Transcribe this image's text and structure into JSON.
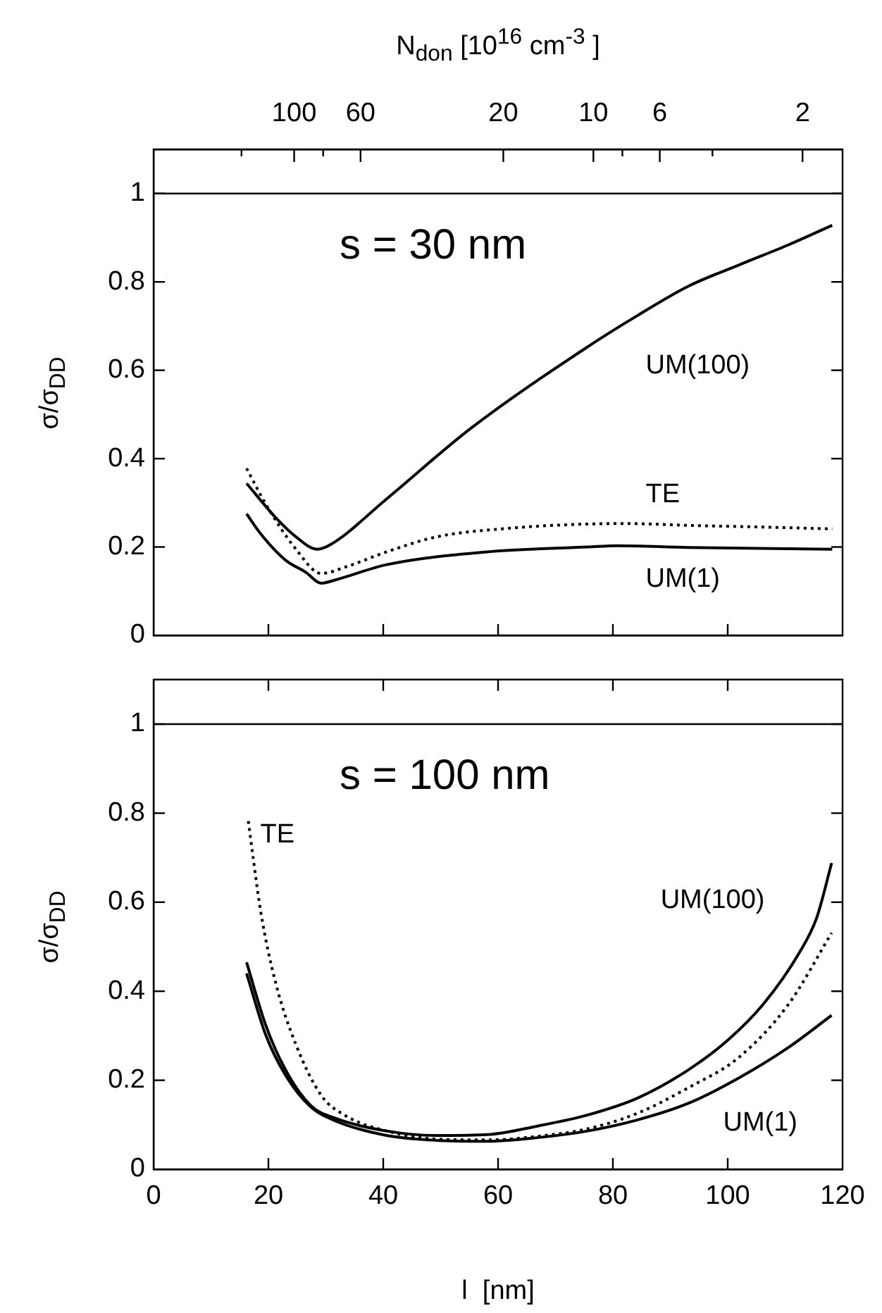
{
  "chart_data": [
    {
      "type": "line",
      "x2label": "N$_{don}$  [10$^{16}$ cm$^{-3}$ ]",
      "ylabel": "σ/σ$_{DD}$",
      "annotations": [
        "s = 30 nm"
      ],
      "xlim": [
        0,
        120
      ],
      "xticks": [
        0,
        20,
        40,
        60,
        80,
        100,
        120
      ],
      "log": "x2",
      "x2lim": [
        295,
        1.47
      ],
      "x2ticks": [
        {
          "value": 150,
          "label": null
        },
        100,
        {
          "value": 80,
          "label": null
        },
        60,
        20,
        10,
        {
          "value": 8,
          "label": null
        },
        6,
        {
          "value": 4,
          "label": null
        },
        2
      ],
      "ylim": [
        0,
        1.1
      ],
      "yticks": [
        0,
        0.2,
        0.4,
        0.6,
        0.8,
        1
      ],
      "tick_labels": "y",
      "grid": false,
      "legend": false,
      "marker": "none",
      "ref_lines": [
        {
          "axis": "y",
          "value": 1
        }
      ],
      "series": [
        {
          "name": "UM(100)",
          "color": "#000000",
          "line_style": "solid",
          "x": [
            16.2,
            21.3,
            24.8,
            28.5,
            30.9,
            40.6,
            55.4,
            75.6,
            84.3,
            93.1,
            101.9,
            110.6,
            118.2
          ],
          "values": [
            0.344,
            0.266,
            0.223,
            0.195,
            0.206,
            0.309,
            0.47,
            0.653,
            0.724,
            0.79,
            0.838,
            0.884,
            0.928
          ]
        },
        {
          "name": "TE",
          "color": "#000000",
          "line_style": "dotted",
          "x": [
            16.2,
            19.5,
            24.8,
            29.2,
            33.5,
            40.6,
            49.3,
            62.5,
            75.6,
            82.6,
            93.1,
            106.2,
            118.2
          ],
          "values": [
            0.378,
            0.298,
            0.195,
            0.14,
            0.155,
            0.189,
            0.223,
            0.243,
            0.252,
            0.253,
            0.249,
            0.245,
            0.241
          ]
        },
        {
          "name": "UM(1)",
          "color": "#000000",
          "line_style": "solid",
          "x": [
            16.2,
            18.7,
            23.0,
            26.5,
            29.2,
            31.8,
            40.6,
            58.1,
            75.6,
            80.8,
            93.1,
            118.2
          ],
          "values": [
            0.275,
            0.229,
            0.17,
            0.143,
            0.118,
            0.126,
            0.16,
            0.189,
            0.2,
            0.203,
            0.199,
            0.195
          ]
        }
      ]
    },
    {
      "type": "line",
      "xlabel": "l  [nm]",
      "ylabel": "σ/σ$_{DD}$",
      "annotations": [
        "s = 100 nm"
      ],
      "xlim": [
        0,
        120
      ],
      "xticks": [
        0,
        20,
        40,
        60,
        80,
        100,
        120
      ],
      "ylim": [
        0,
        1.1
      ],
      "yticks": [
        0,
        0.2,
        0.4,
        0.6,
        0.8,
        1
      ],
      "grid": false,
      "legend": false,
      "marker": "none",
      "ref_lines": [
        {
          "axis": "y",
          "value": 1
        }
      ],
      "series": [
        {
          "name": "UM(100)",
          "color": "#000000",
          "line_style": "solid",
          "x": [
            16.2,
            19.5,
            23.0,
            27.4,
            31.8,
            40.6,
            49.3,
            58.1,
            66.8,
            75.6,
            84.3,
            93.1,
            100.1,
            106.2,
            112.4,
            115.5,
            118.1
          ],
          "values": [
            0.465,
            0.325,
            0.223,
            0.143,
            0.114,
            0.086,
            0.076,
            0.078,
            0.097,
            0.122,
            0.16,
            0.223,
            0.291,
            0.371,
            0.485,
            0.565,
            0.688
          ]
        },
        {
          "name": "TE",
          "color": "#000000",
          "line_style": "dotted",
          "x": [
            16.5,
            18.7,
            21.3,
            24.8,
            29.2,
            33.5,
            40.6,
            49.3,
            58.1,
            66.8,
            75.6,
            84.3,
            93.1,
            101.9,
            110.6,
            118.1
          ],
          "values": [
            0.782,
            0.576,
            0.417,
            0.28,
            0.166,
            0.12,
            0.086,
            0.068,
            0.066,
            0.074,
            0.091,
            0.126,
            0.183,
            0.251,
            0.371,
            0.531
          ]
        },
        {
          "name": "UM(1)",
          "color": "#000000",
          "line_style": "solid",
          "x": [
            16.2,
            19.5,
            23.0,
            27.4,
            31.8,
            40.6,
            49.3,
            58.1,
            66.8,
            75.6,
            84.3,
            93.1,
            101.9,
            110.6,
            118.1
          ],
          "values": [
            0.44,
            0.303,
            0.211,
            0.14,
            0.108,
            0.076,
            0.065,
            0.063,
            0.071,
            0.086,
            0.111,
            0.148,
            0.205,
            0.274,
            0.346
          ]
        }
      ]
    }
  ]
}
